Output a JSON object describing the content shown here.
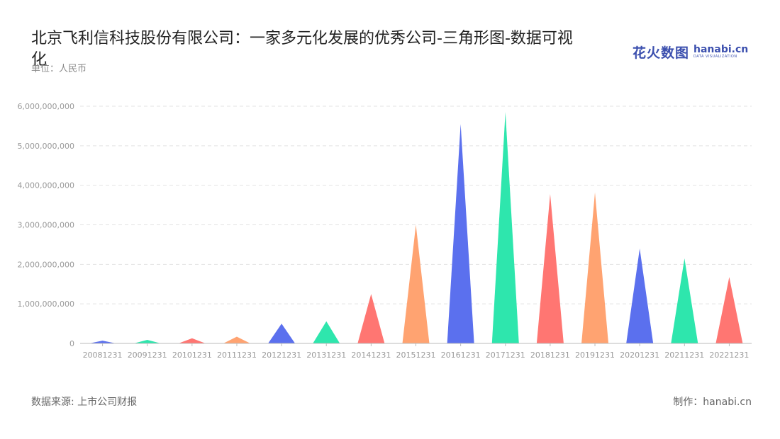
{
  "header": {
    "title": "北京飞利信科技股份有限公司：一家多元化发展的优秀公司-三角形图-数据可视化",
    "unit": "单位：人民币"
  },
  "logo": {
    "cn": "花火数图",
    "en": "hanabi.cn",
    "sub": "DATA VISUALIZATION"
  },
  "footer": {
    "source": "数据来源: 上市公司财报",
    "made_by": "制作：hanabi.cn"
  },
  "chart_data": {
    "type": "bar",
    "subtype": "triangle",
    "categories": [
      "20081231",
      "20091231",
      "20101231",
      "20111231",
      "20121231",
      "20131231",
      "20141231",
      "20151231",
      "20161231",
      "20171231",
      "20181231",
      "20191231",
      "20201231",
      "20211231",
      "20221231"
    ],
    "values": [
      70000000,
      90000000,
      130000000,
      170000000,
      500000000,
      560000000,
      1250000000,
      3000000000,
      5550000000,
      5850000000,
      3780000000,
      3820000000,
      2400000000,
      2150000000,
      1680000000
    ],
    "ylim": [
      0,
      6000000000
    ],
    "yticks": [
      0,
      1000000000,
      2000000000,
      3000000000,
      4000000000,
      5000000000,
      6000000000
    ],
    "ytick_labels": [
      "0",
      "1,000,000,000",
      "2,000,000,000",
      "3,000,000,000",
      "4,000,000,000",
      "5,000,000,000",
      "6,000,000,000"
    ],
    "grid": true,
    "colors": [
      "#5b70ee",
      "#2ee6ad",
      "#ff7672",
      "#ffa371"
    ]
  }
}
